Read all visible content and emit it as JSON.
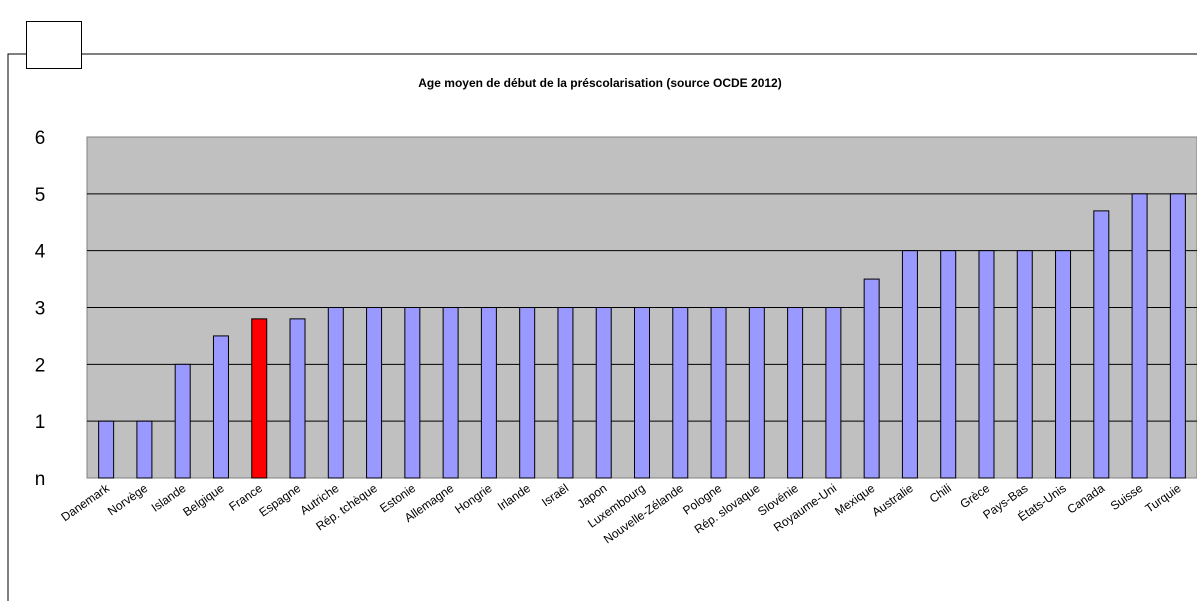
{
  "chart_data": {
    "type": "bar",
    "title": "Age moyen de début de la préscolarisation (source OCDE 2012)",
    "xlabel": "",
    "ylabel": "",
    "ylim": [
      0,
      6
    ],
    "yticks": [
      "n",
      "1",
      "2",
      "3",
      "4",
      "5",
      "6"
    ],
    "grid": true,
    "highlight_category": "France",
    "colors": {
      "bar": "#9999ff",
      "highlight": "#ff0000",
      "plot_bg": "#c0c0c0",
      "grid": "#000000"
    },
    "categories": [
      "Danemark",
      "Norvège",
      "Islande",
      "Belgique",
      "France",
      "Espagne",
      "Autriche",
      "Rép. tchèque",
      "Estonie",
      "Allemagne",
      "Hongrie",
      "Irlande",
      "Israël",
      "Japon",
      "Luxembourg",
      "Nouvelle-Zélande",
      "Pologne",
      "Rép. slovaque",
      "Slovénie",
      "Royaume-Uni",
      "Mexique",
      "Australie",
      "Chili",
      "Grèce",
      "Pays-Bas",
      "États-Unis",
      "Canada",
      "Suisse",
      "Turquie"
    ],
    "values": [
      1,
      1,
      2,
      2.5,
      2.8,
      2.8,
      3,
      3,
      3,
      3,
      3,
      3,
      3,
      3,
      3,
      3,
      3,
      3,
      3,
      3,
      3.5,
      4,
      4,
      4,
      4,
      4,
      4.7,
      5,
      5
    ]
  }
}
